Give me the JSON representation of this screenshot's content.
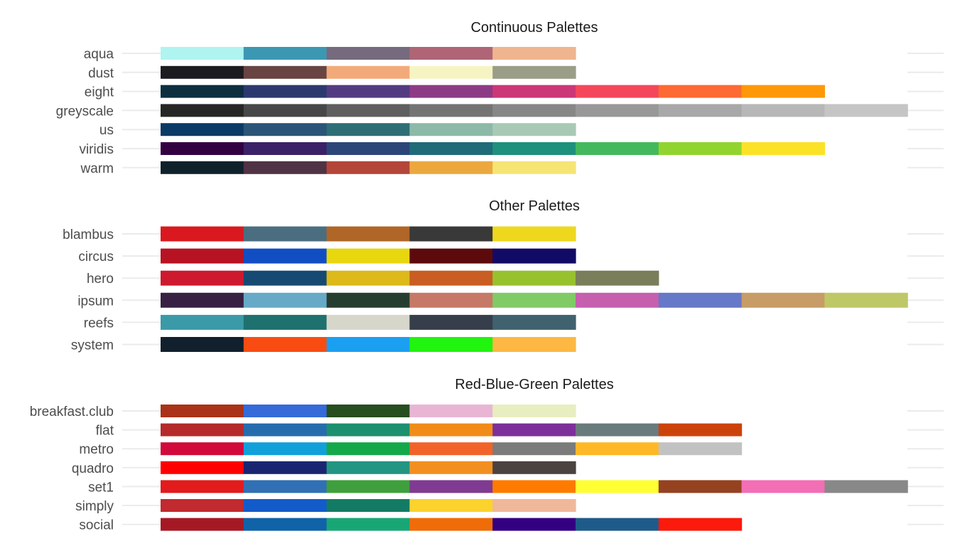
{
  "chart_data": [
    {
      "type": "table",
      "title": "Continuous Palettes",
      "palettes": [
        {
          "name": "aqua",
          "colors": [
            "#aff4f1",
            "#3c98b2",
            "#766a7e",
            "#b06577",
            "#efb58f"
          ]
        },
        {
          "name": "dust",
          "colors": [
            "#1c1b20",
            "#684542",
            "#f3aa7b",
            "#f7f4c4",
            "#9a9e88"
          ]
        },
        {
          "name": "eight",
          "colors": [
            "#0d2f40",
            "#2c396f",
            "#533b82",
            "#8d3b85",
            "#cc3777",
            "#f4475b",
            "#fd6a33",
            "#ff9809"
          ]
        },
        {
          "name": "greyscale",
          "colors": [
            "#262626",
            "#474747",
            "#5f5f5f",
            "#747474",
            "#878787",
            "#989898",
            "#a8a8a8",
            "#b7b7b7",
            "#c5c5c5"
          ]
        },
        {
          "name": "us",
          "colors": [
            "#0b3a66",
            "#2b5578",
            "#2e6e75",
            "#8db9a8",
            "#a8cab5"
          ]
        },
        {
          "name": "viridis",
          "colors": [
            "#330041",
            "#3b2168",
            "#2d4678",
            "#206b78",
            "#1d917c",
            "#43b85c",
            "#92d42f",
            "#fbe227"
          ]
        },
        {
          "name": "warm",
          "colors": [
            "#0f222c",
            "#503344",
            "#b44539",
            "#eca83e",
            "#f6e574"
          ]
        }
      ]
    },
    {
      "type": "table",
      "title": "Other Palettes",
      "palettes": [
        {
          "name": "blambus",
          "colors": [
            "#d9191f",
            "#4a6e80",
            "#b06627",
            "#393939",
            "#eed81e"
          ]
        },
        {
          "name": "circus",
          "colors": [
            "#b71322",
            "#114ec3",
            "#e8d70f",
            "#5c0a0c",
            "#120b66"
          ]
        },
        {
          "name": "hero",
          "colors": [
            "#cd1a2e",
            "#174a72",
            "#ddb91a",
            "#c95d22",
            "#97c22e",
            "#7a7e5a"
          ]
        },
        {
          "name": "ipsum",
          "colors": [
            "#382042",
            "#66aac8",
            "#263e30",
            "#c67967",
            "#80cb66",
            "#c660ae",
            "#6678c8",
            "#c79c66",
            "#bfc866"
          ]
        },
        {
          "name": "reefs",
          "colors": [
            "#3a9aa8",
            "#1f716f",
            "#d7d6cb",
            "#373e4b",
            "#40626e"
          ]
        },
        {
          "name": "system",
          "colors": [
            "#121f2c",
            "#f84c13",
            "#1b9ff1",
            "#21f40f",
            "#fcb842"
          ]
        }
      ]
    },
    {
      "type": "table",
      "title": "Red-Blue-Green Palettes",
      "palettes": [
        {
          "name": "breakfast.club",
          "colors": [
            "#a93218",
            "#356bd9",
            "#264e1e",
            "#e8b6d4",
            "#e8eec0"
          ]
        },
        {
          "name": "flat",
          "colors": [
            "#b52a2a",
            "#276cad",
            "#1c906f",
            "#f28c18",
            "#7d2f9a",
            "#6a7b7d",
            "#cc430a"
          ]
        },
        {
          "name": "metro",
          "colors": [
            "#d10a3b",
            "#12a0da",
            "#14a84b",
            "#f2632a",
            "#7b7b7b",
            "#feb827",
            "#c2c2c2"
          ]
        },
        {
          "name": "quadro",
          "colors": [
            "#ff0000",
            "#1a2571",
            "#229583",
            "#f38f20",
            "#4b4242"
          ]
        },
        {
          "name": "set1",
          "colors": [
            "#e21b1c",
            "#3170b4",
            "#3f9f3c",
            "#7f3b91",
            "#ff7b00",
            "#ffff33",
            "#954221",
            "#f26eb5",
            "#888888"
          ]
        },
        {
          "name": "simply",
          "colors": [
            "#c12a2f",
            "#135bc9",
            "#137b64",
            "#fcd22d",
            "#f0b89b"
          ]
        },
        {
          "name": "social",
          "colors": [
            "#a51924",
            "#1063a7",
            "#19a675",
            "#ef6c09",
            "#330082",
            "#1f5b8a",
            "#fb1a0b"
          ]
        }
      ]
    }
  ]
}
